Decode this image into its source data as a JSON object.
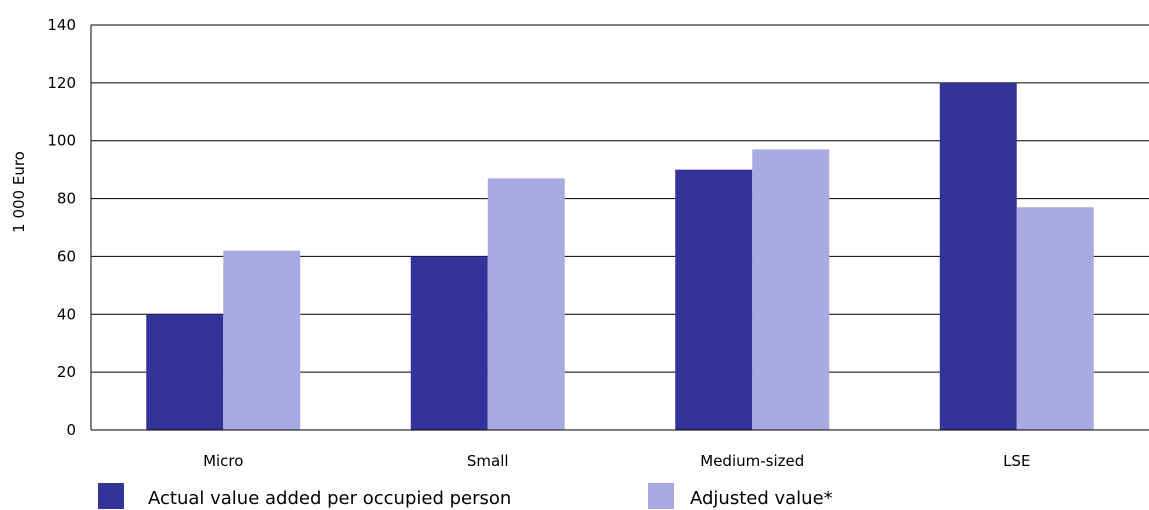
{
  "chart_data": {
    "type": "bar",
    "categories": [
      "Micro",
      "Small",
      "Medium-sized",
      "LSE"
    ],
    "series": [
      {
        "name": "Actual value added per occupied person",
        "values": [
          40,
          60,
          90,
          120
        ],
        "color": "#333399"
      },
      {
        "name": "Adjusted value*",
        "values": [
          62,
          87,
          97,
          77
        ],
        "color": "#aaaae3"
      }
    ],
    "xlabel": "",
    "ylabel": "1  000 Euro",
    "ylim": [
      0,
      140
    ],
    "yticks": [
      "0",
      "20",
      "40",
      "60",
      "80",
      "100",
      "120",
      "140"
    ],
    "grid": true,
    "legend_position": "bottom"
  }
}
